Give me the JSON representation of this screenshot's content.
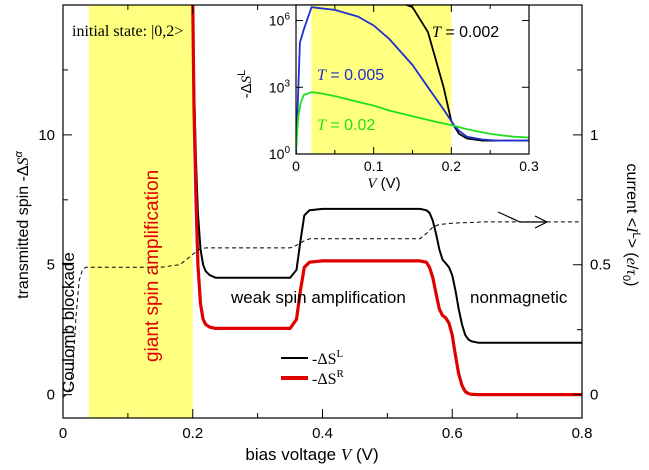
{
  "chart_data": [
    {
      "type": "line",
      "title": "",
      "xlabel": "bias voltage V (V)",
      "ylabel_left": "transmitted spin -ΔS^α",
      "ylabel_right": "current <I^L> (e/τ0)",
      "xlim": [
        0,
        0.8
      ],
      "ylim_left": [
        -0.9,
        15.0
      ],
      "ylim_right": [
        -0.09,
        1.5
      ],
      "x_ticks": [
        "0",
        "0.2",
        "0.4",
        "0.6",
        "0.8"
      ],
      "y_ticks_left": [
        "0",
        "5",
        "10"
      ],
      "y_ticks_right": [
        "0",
        "0.5",
        "1"
      ],
      "shaded_band": [
        0.04,
        0.2
      ],
      "shade_color": "#ffff80",
      "region_labels": {
        "initial_state": "initial state: |0,2>",
        "coulomb": "Coulomb blockade",
        "giant": "giant spin amplification",
        "weak": "weak spin amplification",
        "nonmagnetic": "nonmagnetic"
      },
      "legend": {
        "placement": "bottom-center",
        "entries": [
          {
            "label_main": "-ΔS",
            "label_sup": "L",
            "color": "#000000"
          },
          {
            "label_main": "-ΔS",
            "label_sup": "R",
            "color": "#e00000"
          }
        ]
      },
      "series": [
        {
          "key": "SL",
          "axis": "left",
          "color": "#000000",
          "x": [
            0.2,
            0.202,
            0.205,
            0.208,
            0.212,
            0.216,
            0.22,
            0.226,
            0.235,
            0.25,
            0.3,
            0.35,
            0.36,
            0.366,
            0.372,
            0.38,
            0.4,
            0.45,
            0.5,
            0.55,
            0.56,
            0.565,
            0.57,
            0.575,
            0.58,
            0.585,
            0.59,
            0.595,
            0.6,
            0.605,
            0.61,
            0.615,
            0.62,
            0.625,
            0.63,
            0.64,
            0.7,
            0.8
          ],
          "y": [
            15.0,
            12.0,
            9.0,
            7.0,
            5.6,
            5.0,
            4.75,
            4.6,
            4.5,
            4.5,
            4.5,
            4.5,
            4.8,
            5.9,
            6.9,
            7.1,
            7.15,
            7.15,
            7.15,
            7.15,
            7.1,
            7.0,
            6.7,
            6.2,
            5.6,
            5.2,
            5.05,
            4.9,
            4.6,
            4.0,
            3.3,
            2.7,
            2.3,
            2.12,
            2.05,
            2.0,
            2.0,
            2.0
          ]
        },
        {
          "key": "SR",
          "axis": "left",
          "color": "#e00000",
          "x": [
            0.2,
            0.202,
            0.205,
            0.208,
            0.212,
            0.216,
            0.22,
            0.226,
            0.235,
            0.25,
            0.3,
            0.35,
            0.36,
            0.366,
            0.372,
            0.38,
            0.4,
            0.45,
            0.5,
            0.55,
            0.56,
            0.565,
            0.57,
            0.575,
            0.58,
            0.585,
            0.59,
            0.595,
            0.6,
            0.605,
            0.61,
            0.615,
            0.62,
            0.625,
            0.63,
            0.64,
            0.7,
            0.8
          ],
          "y": [
            15.0,
            11.0,
            7.5,
            5.0,
            3.5,
            2.9,
            2.7,
            2.6,
            2.55,
            2.55,
            2.55,
            2.55,
            2.9,
            4.0,
            4.9,
            5.1,
            5.15,
            5.15,
            5.15,
            5.15,
            5.1,
            4.9,
            4.5,
            3.9,
            3.3,
            3.05,
            2.95,
            2.75,
            2.3,
            1.5,
            0.8,
            0.35,
            0.12,
            0.04,
            0.01,
            0.0,
            0.0,
            0.0
          ]
        },
        {
          "key": "IL",
          "axis": "right",
          "color": "#000000",
          "dashed": true,
          "x": [
            0.0,
            0.005,
            0.01,
            0.015,
            0.02,
            0.025,
            0.03,
            0.035,
            0.04,
            0.05,
            0.1,
            0.15,
            0.18,
            0.19,
            0.2,
            0.21,
            0.22,
            0.25,
            0.3,
            0.35,
            0.36,
            0.37,
            0.38,
            0.4,
            0.45,
            0.5,
            0.55,
            0.56,
            0.57,
            0.58,
            0.6,
            0.65,
            0.7,
            0.75,
            0.8
          ],
          "y": [
            -0.01,
            0.0,
            0.02,
            0.1,
            0.3,
            0.44,
            0.48,
            0.49,
            0.49,
            0.49,
            0.49,
            0.49,
            0.5,
            0.52,
            0.54,
            0.56,
            0.565,
            0.565,
            0.565,
            0.565,
            0.575,
            0.59,
            0.6,
            0.6,
            0.6,
            0.6,
            0.6,
            0.62,
            0.645,
            0.655,
            0.66,
            0.665,
            0.665,
            0.665,
            0.665
          ]
        }
      ],
      "arrow_direction": "right"
    },
    {
      "type": "line",
      "title": "",
      "inset": true,
      "xlabel": "V (V)",
      "ylabel": "-ΔS^L",
      "xlim": [
        0,
        0.3
      ],
      "ylim": [
        1,
        5000000
      ],
      "yscale": "log",
      "x_ticks": [
        "0",
        "0.1",
        "0.2",
        "0.3"
      ],
      "y_ticks": [
        {
          "base": "10",
          "exp": "0"
        },
        {
          "base": "10",
          "exp": "3"
        },
        {
          "base": "10",
          "exp": "6"
        }
      ],
      "shaded_band": [
        0.02,
        0.2
      ],
      "series": [
        {
          "key": "T0002",
          "label_prefix": "T",
          "label_value": " = 0.002",
          "color": "#000000",
          "x": [
            0.0,
            0.02,
            0.05,
            0.1,
            0.12,
            0.15,
            0.17,
            0.19,
            0.2,
            0.205,
            0.21,
            0.22,
            0.24,
            0.26,
            0.28,
            0.3
          ],
          "y": [
            0,
            0,
            0,
            0,
            10000000,
            4000000,
            300000,
            1000,
            30,
            15,
            8,
            5,
            4,
            4,
            4,
            4
          ]
        },
        {
          "key": "T0005",
          "label_prefix": "T",
          "label_value": " = 0.005",
          "color": "#1f2fd0",
          "x": [
            0.0,
            0.005,
            0.01,
            0.02,
            0.05,
            0.08,
            0.1,
            0.12,
            0.15,
            0.17,
            0.19,
            0.2,
            0.205,
            0.21,
            0.22,
            0.24,
            0.26,
            0.28,
            0.3
          ],
          "y": [
            1,
            100000,
            400000,
            4000000,
            3000000,
            1500000,
            600000,
            150000,
            10000,
            1000,
            100,
            30,
            17,
            11,
            6,
            4.5,
            4,
            4,
            4
          ]
        },
        {
          "key": "T002",
          "label_prefix": "T",
          "label_value": " = 0.02",
          "color": "#20e020",
          "x": [
            0.0,
            0.003,
            0.006,
            0.01,
            0.02,
            0.03,
            0.05,
            0.08,
            0.1,
            0.12,
            0.15,
            0.18,
            0.2,
            0.22,
            0.25,
            0.28,
            0.3
          ],
          "y": [
            1.5,
            50,
            200,
            450,
            600,
            550,
            400,
            220,
            150,
            90,
            50,
            28,
            20,
            13,
            8,
            6,
            5.5
          ]
        }
      ]
    }
  ]
}
